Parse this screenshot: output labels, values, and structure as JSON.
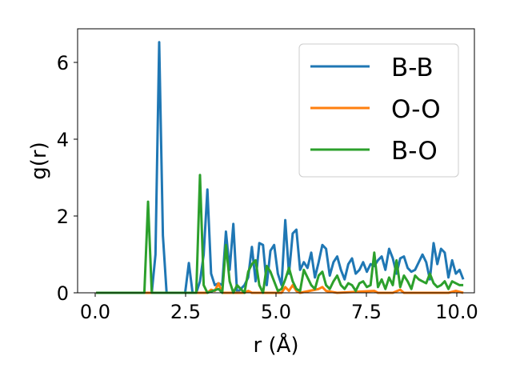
{
  "chart_data": {
    "type": "line",
    "title": "",
    "xlabel": "r (Å)",
    "ylabel": "g(r)",
    "xlim": [
      -0.5,
      10.2
    ],
    "ylim": [
      0,
      6.9
    ],
    "xticks": [
      "0.0",
      "2.5",
      "5.0",
      "7.5",
      "10.0"
    ],
    "yticks": [
      "0",
      "2",
      "4",
      "6"
    ],
    "legend": {
      "position": "top-right"
    },
    "series": [
      {
        "name": "B-B",
        "color": "#1f77b4",
        "points": [
          [
            0.0,
            0
          ],
          [
            1.3,
            0
          ],
          [
            1.5,
            0
          ],
          [
            1.6,
            1.0
          ],
          [
            1.7,
            6.55
          ],
          [
            1.8,
            1.5
          ],
          [
            1.9,
            0
          ],
          [
            2.0,
            0
          ],
          [
            2.4,
            0
          ],
          [
            2.5,
            0.78
          ],
          [
            2.6,
            0
          ],
          [
            2.7,
            0
          ],
          [
            2.8,
            0.3
          ],
          [
            2.9,
            1.0
          ],
          [
            3.0,
            2.7
          ],
          [
            3.1,
            0.5
          ],
          [
            3.2,
            0.2
          ],
          [
            3.3,
            0.25
          ],
          [
            3.4,
            0.2
          ],
          [
            3.5,
            1.6
          ],
          [
            3.6,
            0.6
          ],
          [
            3.7,
            1.8
          ],
          [
            3.8,
            0
          ],
          [
            3.9,
            0.1
          ],
          [
            4.0,
            0.2
          ],
          [
            4.1,
            0.4
          ],
          [
            4.2,
            1.2
          ],
          [
            4.3,
            0.3
          ],
          [
            4.4,
            1.3
          ],
          [
            4.5,
            1.25
          ],
          [
            4.6,
            0.2
          ],
          [
            4.7,
            1.1
          ],
          [
            4.8,
            1.25
          ],
          [
            4.9,
            0.5
          ],
          [
            5.0,
            0.2
          ],
          [
            5.1,
            1.9
          ],
          [
            5.2,
            0.5
          ],
          [
            5.3,
            1.55
          ],
          [
            5.4,
            1.65
          ],
          [
            5.5,
            0.6
          ],
          [
            5.6,
            0.8
          ],
          [
            5.7,
            0.65
          ],
          [
            5.8,
            1.05
          ],
          [
            5.9,
            0.4
          ],
          [
            6.0,
            0.8
          ],
          [
            6.1,
            1.25
          ],
          [
            6.2,
            1.15
          ],
          [
            6.3,
            0.45
          ],
          [
            6.4,
            0.8
          ],
          [
            6.5,
            0.95
          ],
          [
            6.6,
            0.6
          ],
          [
            6.7,
            0.35
          ],
          [
            6.8,
            0.75
          ],
          [
            6.9,
            0.9
          ],
          [
            7.0,
            0.5
          ],
          [
            7.1,
            0.6
          ],
          [
            7.2,
            0.8
          ],
          [
            7.3,
            0.55
          ],
          [
            7.4,
            0.75
          ],
          [
            7.5,
            0.7
          ],
          [
            7.6,
            0.85
          ],
          [
            7.7,
            0.95
          ],
          [
            7.8,
            0.6
          ],
          [
            7.9,
            1.15
          ],
          [
            8.0,
            0.9
          ],
          [
            8.1,
            0.5
          ],
          [
            8.2,
            0.9
          ],
          [
            8.3,
            0.95
          ],
          [
            8.4,
            0.65
          ],
          [
            8.5,
            0.55
          ],
          [
            8.6,
            0.6
          ],
          [
            8.7,
            0.8
          ],
          [
            8.8,
            1.0
          ],
          [
            8.9,
            0.8
          ],
          [
            9.0,
            0.35
          ],
          [
            9.1,
            1.3
          ],
          [
            9.2,
            0.75
          ],
          [
            9.3,
            1.15
          ],
          [
            9.4,
            1.05
          ],
          [
            9.5,
            0.4
          ],
          [
            9.6,
            0.85
          ],
          [
            9.7,
            0.5
          ],
          [
            9.8,
            0.6
          ],
          [
            9.9,
            0.35
          ]
        ]
      },
      {
        "name": "O-O",
        "color": "#ff7f0e",
        "points": [
          [
            0.0,
            0
          ],
          [
            3.0,
            0
          ],
          [
            3.1,
            0.08
          ],
          [
            3.2,
            0.05
          ],
          [
            3.3,
            0.25
          ],
          [
            3.4,
            0
          ],
          [
            4.0,
            0
          ],
          [
            4.1,
            0.05
          ],
          [
            4.2,
            0
          ],
          [
            5.0,
            0
          ],
          [
            5.1,
            0.15
          ],
          [
            5.2,
            0.05
          ],
          [
            5.3,
            0.2
          ],
          [
            5.4,
            0.05
          ],
          [
            5.5,
            0
          ],
          [
            6.0,
            0.1
          ],
          [
            6.1,
            0.15
          ],
          [
            6.2,
            0.05
          ],
          [
            6.5,
            0
          ],
          [
            7.5,
            0.05
          ],
          [
            7.6,
            0
          ],
          [
            8.0,
            0
          ],
          [
            8.2,
            0.08
          ],
          [
            8.3,
            0
          ],
          [
            9.5,
            0
          ],
          [
            9.7,
            0.05
          ],
          [
            9.9,
            0
          ]
        ]
      },
      {
        "name": "B-O",
        "color": "#2ca02c",
        "points": [
          [
            0.0,
            0
          ],
          [
            1.3,
            0
          ],
          [
            1.4,
            2.38
          ],
          [
            1.5,
            0
          ],
          [
            2.7,
            0
          ],
          [
            2.8,
            3.08
          ],
          [
            2.9,
            0.2
          ],
          [
            3.0,
            0
          ],
          [
            3.3,
            0.1
          ],
          [
            3.4,
            0
          ],
          [
            3.5,
            1.25
          ],
          [
            3.6,
            0.3
          ],
          [
            3.7,
            0
          ],
          [
            3.8,
            0.2
          ],
          [
            3.9,
            0.1
          ],
          [
            4.0,
            0
          ],
          [
            4.1,
            0.55
          ],
          [
            4.2,
            0.75
          ],
          [
            4.3,
            0.85
          ],
          [
            4.4,
            0.2
          ],
          [
            4.5,
            0
          ],
          [
            4.6,
            0.7
          ],
          [
            4.7,
            0.55
          ],
          [
            4.8,
            0.3
          ],
          [
            4.9,
            0.05
          ],
          [
            5.0,
            0.1
          ],
          [
            5.1,
            0.35
          ],
          [
            5.2,
            0.65
          ],
          [
            5.3,
            0.3
          ],
          [
            5.4,
            0.1
          ],
          [
            5.5,
            0.05
          ],
          [
            5.6,
            0.6
          ],
          [
            5.7,
            0.4
          ],
          [
            5.8,
            0.2
          ],
          [
            5.9,
            0.1
          ],
          [
            6.0,
            0.45
          ],
          [
            6.1,
            0.55
          ],
          [
            6.2,
            0.2
          ],
          [
            6.3,
            0.1
          ],
          [
            6.4,
            0.3
          ],
          [
            6.5,
            0.45
          ],
          [
            6.6,
            0.2
          ],
          [
            6.7,
            0.1
          ],
          [
            6.8,
            0.25
          ],
          [
            6.9,
            0.2
          ],
          [
            7.0,
            0.05
          ],
          [
            7.1,
            0.25
          ],
          [
            7.2,
            0.3
          ],
          [
            7.3,
            0.15
          ],
          [
            7.4,
            0.2
          ],
          [
            7.5,
            1.05
          ],
          [
            7.6,
            0.15
          ],
          [
            7.7,
            0.35
          ],
          [
            7.8,
            0.1
          ],
          [
            7.9,
            0.4
          ],
          [
            8.0,
            0.2
          ],
          [
            8.1,
            0.85
          ],
          [
            8.2,
            0.15
          ],
          [
            8.3,
            0.45
          ],
          [
            8.4,
            0.3
          ],
          [
            8.5,
            0.1
          ],
          [
            8.6,
            0.45
          ],
          [
            8.7,
            0.35
          ],
          [
            8.8,
            0.3
          ],
          [
            8.9,
            0.25
          ],
          [
            9.0,
            0.5
          ],
          [
            9.1,
            0.25
          ],
          [
            9.2,
            0.15
          ],
          [
            9.3,
            0.2
          ],
          [
            9.4,
            0.3
          ],
          [
            9.5,
            0.1
          ],
          [
            9.6,
            0.3
          ],
          [
            9.7,
            0.25
          ],
          [
            9.8,
            0.2
          ],
          [
            9.9,
            0.2
          ]
        ]
      }
    ]
  }
}
